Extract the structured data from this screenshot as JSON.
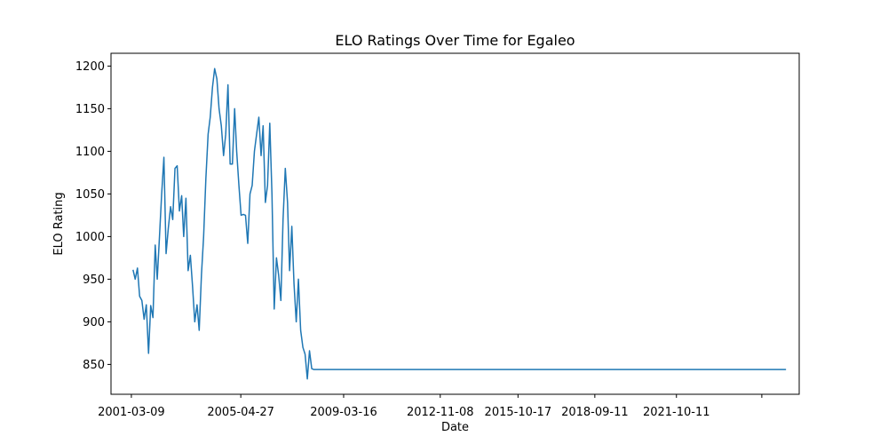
{
  "chart_data": {
    "type": "line",
    "title": "ELO Ratings Over Time for Egaleo",
    "xlabel": "Date",
    "ylabel": "ELO Rating",
    "x_axis_type": "date",
    "xlim": [
      "2000-06-01",
      "2026-06-01"
    ],
    "ylim": [
      815,
      1215
    ],
    "x_ticks": [
      "2001-03-09",
      "2005-04-27",
      "2009-03-16",
      "2012-11-08",
      "2015-10-17",
      "2018-09-11",
      "2021-10-11",
      ""
    ],
    "x_tick_dates": [
      "2001-03-09",
      "2005-04-27",
      "2009-03-16",
      "2012-11-08",
      "2015-10-17",
      "2018-09-11",
      "2021-10-11",
      "2025-01-01"
    ],
    "y_ticks": [
      850,
      900,
      950,
      1000,
      1050,
      1100,
      1150,
      1200
    ],
    "grid": false,
    "legend": "none",
    "line_color": "#1f77b4",
    "series": [
      {
        "x": [
          "2001-04-01",
          "2001-05-01",
          "2001-06-01",
          "2001-07-01",
          "2001-08-01",
          "2001-09-01",
          "2001-10-01",
          "2001-11-01",
          "2001-12-01",
          "2002-01-01",
          "2002-02-01",
          "2002-03-01",
          "2002-04-01",
          "2002-05-01",
          "2002-06-01",
          "2002-07-01",
          "2002-08-01",
          "2002-09-01",
          "2002-10-01",
          "2002-11-01",
          "2002-12-01",
          "2003-01-01",
          "2003-02-01",
          "2003-03-01",
          "2003-04-01",
          "2003-05-01",
          "2003-06-01",
          "2003-07-01",
          "2003-08-01",
          "2003-09-01",
          "2003-10-01",
          "2003-11-01",
          "2003-12-01",
          "2004-01-01",
          "2004-02-01",
          "2004-03-01",
          "2004-04-01",
          "2004-05-01",
          "2004-06-01",
          "2004-07-01",
          "2004-08-01",
          "2004-09-01",
          "2004-10-01",
          "2004-11-01",
          "2004-12-01",
          "2005-01-01",
          "2005-02-01",
          "2005-03-01",
          "2005-04-01",
          "2005-05-01",
          "2005-06-01",
          "2005-07-01",
          "2005-08-01",
          "2005-09-01",
          "2005-10-01",
          "2005-11-01",
          "2005-12-01",
          "2006-01-01",
          "2006-02-01",
          "2006-03-01",
          "2006-04-01",
          "2006-05-01",
          "2006-06-01",
          "2006-07-01",
          "2006-08-01",
          "2006-09-01",
          "2006-10-01",
          "2006-11-01",
          "2006-12-01",
          "2007-01-01",
          "2007-02-01",
          "2007-03-01",
          "2007-04-01",
          "2007-05-01",
          "2007-06-01",
          "2007-07-01",
          "2007-08-01",
          "2007-09-01",
          "2007-10-01",
          "2007-11-01",
          "2007-12-01",
          "2008-01-01",
          "2008-02-01",
          "2008-03-01",
          "2025-12-01"
        ],
        "y": [
          961,
          950,
          963,
          930,
          925,
          903,
          920,
          863,
          919,
          905,
          990,
          950,
          1000,
          1050,
          1093,
          980,
          1010,
          1035,
          1020,
          1080,
          1083,
          1030,
          1048,
          1000,
          1045,
          960,
          978,
          942,
          900,
          920,
          890,
          955,
          1000,
          1068,
          1120,
          1140,
          1175,
          1197,
          1185,
          1150,
          1130,
          1095,
          1120,
          1178,
          1085,
          1085,
          1150,
          1100,
          1060,
          1025,
          1026,
          1025,
          992,
          1050,
          1060,
          1100,
          1120,
          1140,
          1095,
          1130,
          1040,
          1060,
          1133,
          1050,
          915,
          975,
          955,
          925,
          1020,
          1080,
          1040,
          960,
          1012,
          945,
          900,
          950,
          890,
          870,
          862,
          833,
          866,
          845,
          844,
          844,
          844
        ]
      }
    ]
  }
}
